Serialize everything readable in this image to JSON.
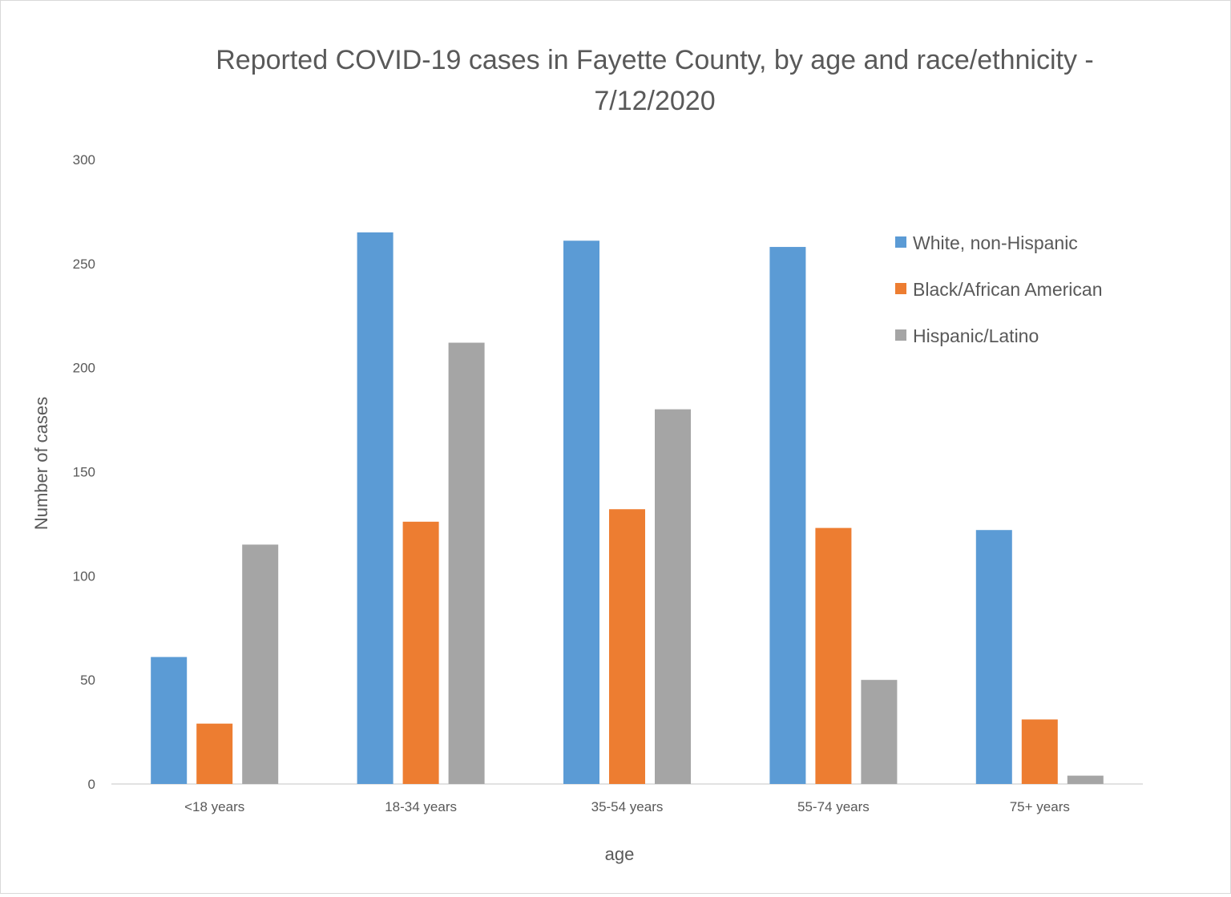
{
  "chart_data": {
    "type": "bar",
    "title_lines": [
      "Reported COVID-19 cases in Fayette County, by age and race/ethnicity -",
      "7/12/2020"
    ],
    "xlabel": "age",
    "ylabel": "Number of cases",
    "ylim": [
      0,
      300
    ],
    "yticks": [
      0,
      50,
      100,
      150,
      200,
      250,
      300
    ],
    "categories": [
      "<18 years",
      "18-34 years",
      "35-54 years",
      "55-74 years",
      "75+ years"
    ],
    "series": [
      {
        "name": "White, non-Hispanic",
        "color": "#5b9bd5",
        "values": [
          61,
          265,
          261,
          258,
          122
        ]
      },
      {
        "name": "Black/African American",
        "color": "#ed7d31",
        "values": [
          29,
          126,
          132,
          123,
          31
        ]
      },
      {
        "name": "Hispanic/Latino",
        "color": "#a5a5a5",
        "values": [
          115,
          212,
          180,
          50,
          4
        ]
      }
    ],
    "grid": false,
    "legend_position": "top-right"
  }
}
